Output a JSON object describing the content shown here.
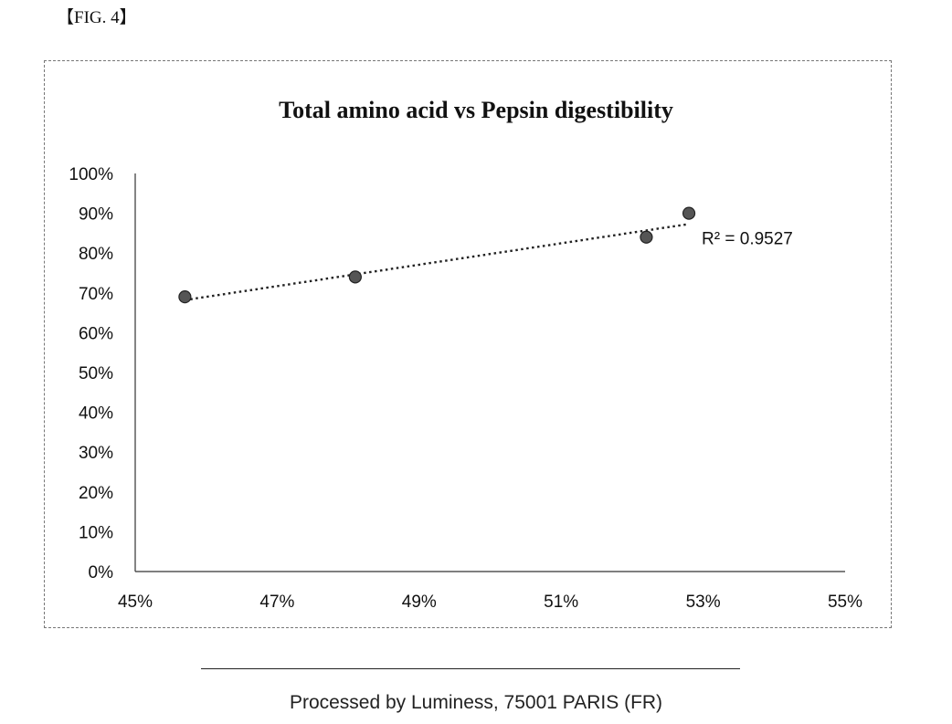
{
  "fig_label": "【FIG. 4】",
  "footer": {
    "text": "Processed by Luminess, 75001 PARIS (FR)"
  },
  "chart_data": {
    "type": "scatter",
    "title": "Total amino acid vs Pepsin digestibility",
    "xlabel": "",
    "ylabel": "",
    "xlim": [
      0.45,
      0.55
    ],
    "ylim": [
      0.0,
      1.0
    ],
    "x_ticks": [
      0.45,
      0.47,
      0.49,
      0.51,
      0.53,
      0.55
    ],
    "x_tick_labels": [
      "45%",
      "47%",
      "49%",
      "51%",
      "53%",
      "55%"
    ],
    "y_ticks": [
      0.0,
      0.1,
      0.2,
      0.3,
      0.4,
      0.5,
      0.6,
      0.7,
      0.8,
      0.9,
      1.0
    ],
    "y_tick_labels": [
      "0%",
      "10%",
      "20%",
      "30%",
      "40%",
      "50%",
      "60%",
      "70%",
      "80%",
      "90%",
      "100%"
    ],
    "grid": false,
    "legend": "none",
    "series": [
      {
        "points": [
          {
            "x": 0.457,
            "y": 0.69
          },
          {
            "x": 0.481,
            "y": 0.74
          },
          {
            "x": 0.522,
            "y": 0.84
          },
          {
            "x": 0.528,
            "y": 0.9
          }
        ],
        "marker_color": "#555555"
      }
    ],
    "trendline": {
      "type": "linear",
      "style": "dotted",
      "x_range": [
        0.457,
        0.528
      ],
      "y_range": [
        0.682,
        0.873
      ],
      "annotation": "R² = 0.9527"
    }
  }
}
